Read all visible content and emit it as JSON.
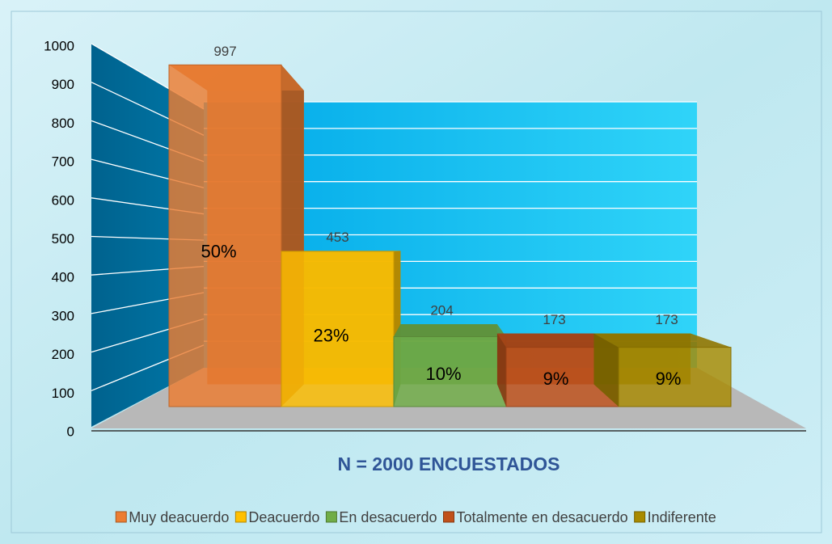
{
  "chart_data": {
    "type": "bar",
    "subtitle": "N = 2000 ENCUESTADOS",
    "categories": [
      "Muy deacuerdo",
      "Deacuerdo",
      "En desacuerdo",
      "Totalmente en desacuerdo",
      "Indiferente"
    ],
    "values": [
      997,
      453,
      204,
      173,
      173
    ],
    "percent_labels": [
      "50%",
      "23%",
      "10%",
      "9%",
      "9%"
    ],
    "colors": [
      "#ed7d31",
      "#ffc000",
      "#70ad47",
      "#c0501a",
      "#a88a00"
    ],
    "ylim": [
      0,
      1000
    ],
    "yticks": [
      0,
      100,
      200,
      300,
      400,
      500,
      600,
      700,
      800,
      900,
      1000
    ],
    "grid": true,
    "legend": "bottom"
  }
}
